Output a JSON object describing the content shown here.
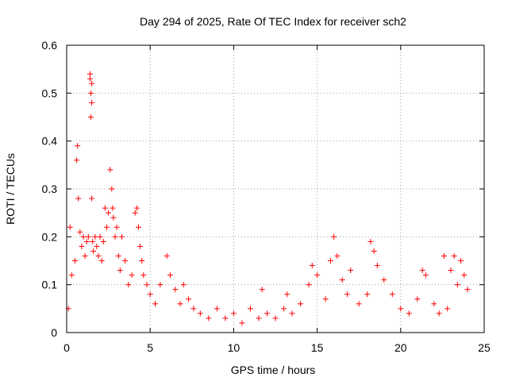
{
  "chart_data": {
    "type": "scatter",
    "title": "Day 294 of 2025, Rate Of TEC Index for receiver sch2",
    "xlabel": "GPS time / hours",
    "ylabel": "ROTI / TECUs",
    "xlim": [
      0,
      25
    ],
    "ylim": [
      0,
      0.6
    ],
    "xticks": [
      0,
      5,
      10,
      15,
      20,
      25
    ],
    "yticks": [
      0,
      0.1,
      0.2,
      0.3,
      0.4,
      0.5,
      0.6
    ],
    "xtick_labels": [
      "0",
      "5",
      "10",
      "15",
      "20",
      "25"
    ],
    "ytick_labels": [
      "0",
      "0.1",
      "0.2",
      "0.3",
      "0.4",
      "0.5",
      "0.6"
    ],
    "grid": true,
    "legend": "none",
    "marker": "plus",
    "series": [
      {
        "color": "#ff0000",
        "x": [
          0.1,
          0.2,
          0.3,
          0.5,
          0.6,
          0.65,
          0.7,
          0.8,
          0.9,
          1.0,
          1.1,
          1.2,
          1.3,
          1.4,
          1.4,
          1.45,
          1.45,
          1.5,
          1.5,
          1.5,
          1.55,
          1.6,
          1.7,
          1.8,
          1.9,
          2.0,
          2.1,
          2.2,
          2.3,
          2.4,
          2.5,
          2.6,
          2.7,
          2.75,
          2.8,
          2.9,
          3.0,
          3.1,
          3.2,
          3.3,
          3.5,
          3.7,
          3.9,
          4.1,
          4.2,
          4.3,
          4.4,
          4.5,
          4.6,
          4.8,
          5.0,
          5.3,
          5.6,
          6.0,
          6.2,
          6.5,
          6.8,
          7.0,
          7.3,
          7.6,
          8.0,
          8.5,
          9.0,
          9.5,
          10.0,
          10.5,
          11.0,
          11.5,
          11.7,
          12.0,
          12.5,
          13.0,
          13.2,
          13.5,
          14.0,
          14.5,
          14.7,
          15.0,
          15.5,
          15.8,
          16.0,
          16.2,
          16.5,
          16.8,
          17.0,
          17.5,
          18.0,
          18.2,
          18.4,
          18.6,
          19.0,
          19.5,
          20.0,
          20.5,
          21.0,
          21.3,
          21.5,
          22.0,
          22.3,
          22.6,
          22.8,
          23.0,
          23.2,
          23.4,
          23.6,
          23.8,
          24.0
        ],
        "y": [
          0.05,
          0.22,
          0.12,
          0.15,
          0.36,
          0.39,
          0.28,
          0.21,
          0.18,
          0.2,
          0.16,
          0.19,
          0.2,
          0.54,
          0.53,
          0.5,
          0.45,
          0.48,
          0.52,
          0.28,
          0.19,
          0.17,
          0.2,
          0.18,
          0.16,
          0.2,
          0.15,
          0.19,
          0.26,
          0.22,
          0.25,
          0.34,
          0.3,
          0.26,
          0.24,
          0.2,
          0.22,
          0.16,
          0.13,
          0.2,
          0.15,
          0.1,
          0.12,
          0.25,
          0.26,
          0.22,
          0.18,
          0.15,
          0.12,
          0.1,
          0.08,
          0.06,
          0.1,
          0.16,
          0.12,
          0.09,
          0.06,
          0.1,
          0.07,
          0.05,
          0.04,
          0.03,
          0.05,
          0.03,
          0.04,
          0.02,
          0.05,
          0.03,
          0.09,
          0.04,
          0.03,
          0.05,
          0.08,
          0.04,
          0.06,
          0.1,
          0.14,
          0.12,
          0.07,
          0.15,
          0.2,
          0.16,
          0.11,
          0.08,
          0.13,
          0.06,
          0.08,
          0.19,
          0.17,
          0.14,
          0.11,
          0.08,
          0.05,
          0.04,
          0.07,
          0.13,
          0.12,
          0.06,
          0.04,
          0.16,
          0.05,
          0.13,
          0.16,
          0.1,
          0.15,
          0.12,
          0.09
        ]
      }
    ]
  }
}
